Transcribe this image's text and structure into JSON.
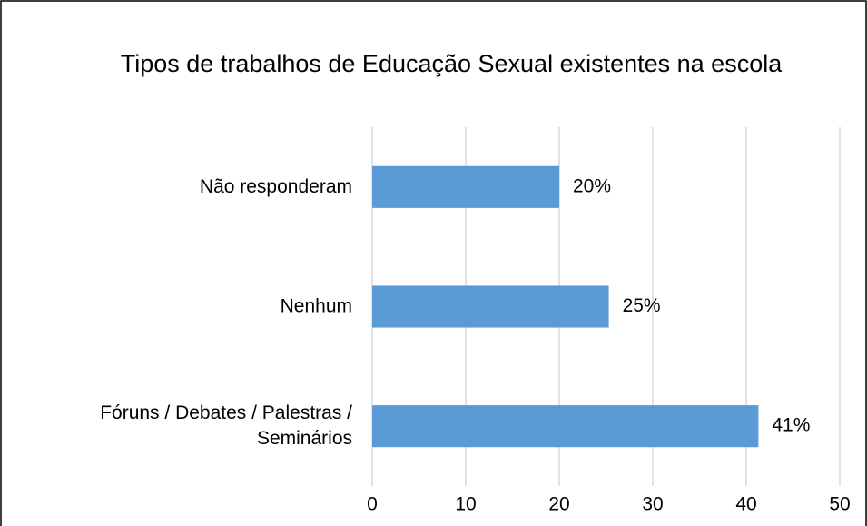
{
  "chart_data": {
    "type": "hbar",
    "title": "Tipos de trabalhos de Educação Sexual existentes na escola",
    "categories": [
      "Não responderam",
      "Nenhum",
      "Fóruns / Debates / Palestras / Seminários"
    ],
    "values": [
      20,
      25.3,
      41.3
    ],
    "value_labels": [
      "20%",
      "25%",
      "41%"
    ],
    "color": "#5b9bd5",
    "xlim": [
      0,
      50
    ],
    "xticks": [
      0,
      10,
      20,
      30,
      40,
      50
    ],
    "grid": true
  }
}
